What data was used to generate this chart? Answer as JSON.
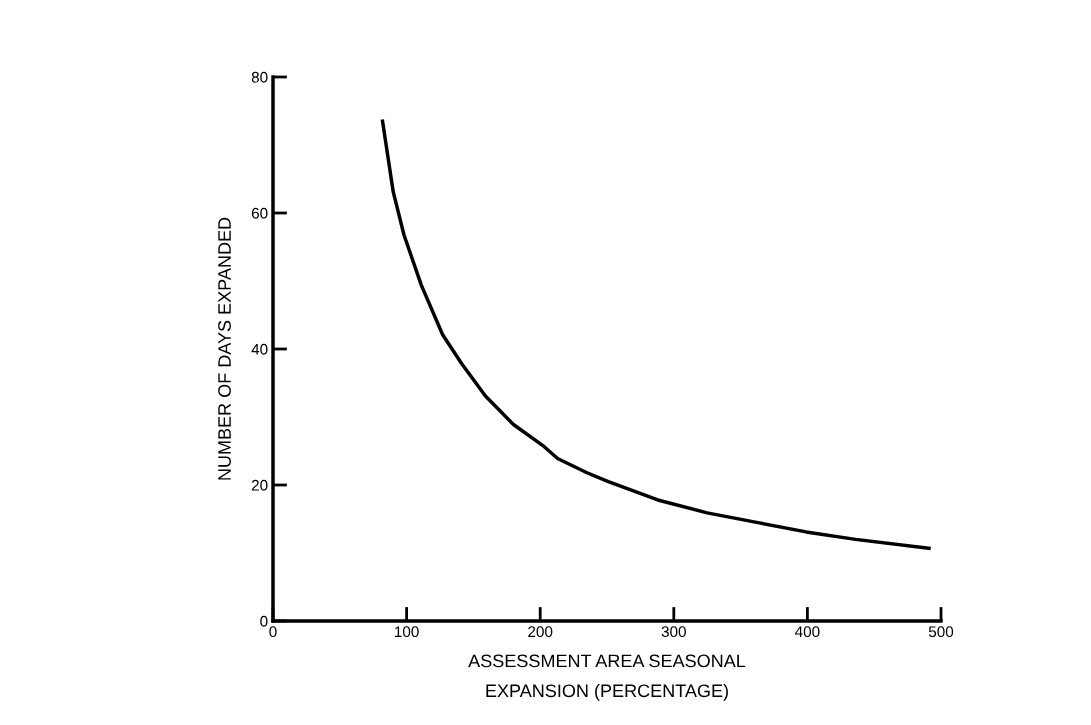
{
  "chart_data": {
    "type": "line",
    "xlabel": "ASSESSMENT AREA SEASONAL\nEXPANSION (PERCENTAGE)",
    "ylabel": "NUMBER OF DAYS EXPANDED",
    "x": [
      82,
      90,
      98,
      111,
      127,
      141,
      159,
      180,
      202,
      213,
      235,
      251,
      288,
      325,
      362,
      399,
      436,
      491
    ],
    "series": [
      {
        "color": "#000000",
        "values": [
          73.5,
          63.1,
          56.8,
          49.4,
          42.1,
          37.9,
          33.1,
          28.9,
          25.8,
          23.9,
          21.8,
          20.5,
          17.8,
          15.9,
          14.5,
          13.1,
          12.0,
          10.7
        ]
      }
    ],
    "xlim": [
      0,
      500
    ],
    "ylim": [
      0,
      80
    ],
    "xticks": [
      0,
      100,
      200,
      300,
      400,
      500
    ],
    "yticks": [
      0,
      20,
      40,
      60,
      80
    ],
    "grid": false,
    "legend": false,
    "line_style": "solid",
    "marker": "none"
  }
}
